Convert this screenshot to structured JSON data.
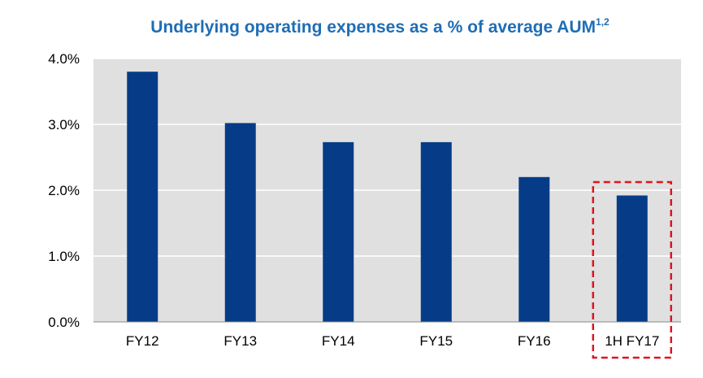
{
  "chart_data": {
    "type": "bar",
    "title": "Underlying operating expenses as a % of average AUM",
    "title_superscript": "1,2",
    "categories": [
      "FY12",
      "FY13",
      "FY14",
      "FY15",
      "FY16",
      "1H FY17"
    ],
    "values": [
      3.8,
      3.02,
      2.73,
      2.73,
      2.2,
      1.92
    ],
    "value_unit": "%",
    "ylim": [
      0,
      4
    ],
    "yticks": [
      "0.0%",
      "1.0%",
      "2.0%",
      "3.0%",
      "4.0%"
    ],
    "grid": true,
    "highlighted_category": "1H FY17",
    "colors": {
      "bar": "#063c87",
      "plot_background": "#e0e0e0",
      "gridline": "#ffffff",
      "highlight_box": "#e0141c",
      "title": "#1f6db5"
    }
  }
}
